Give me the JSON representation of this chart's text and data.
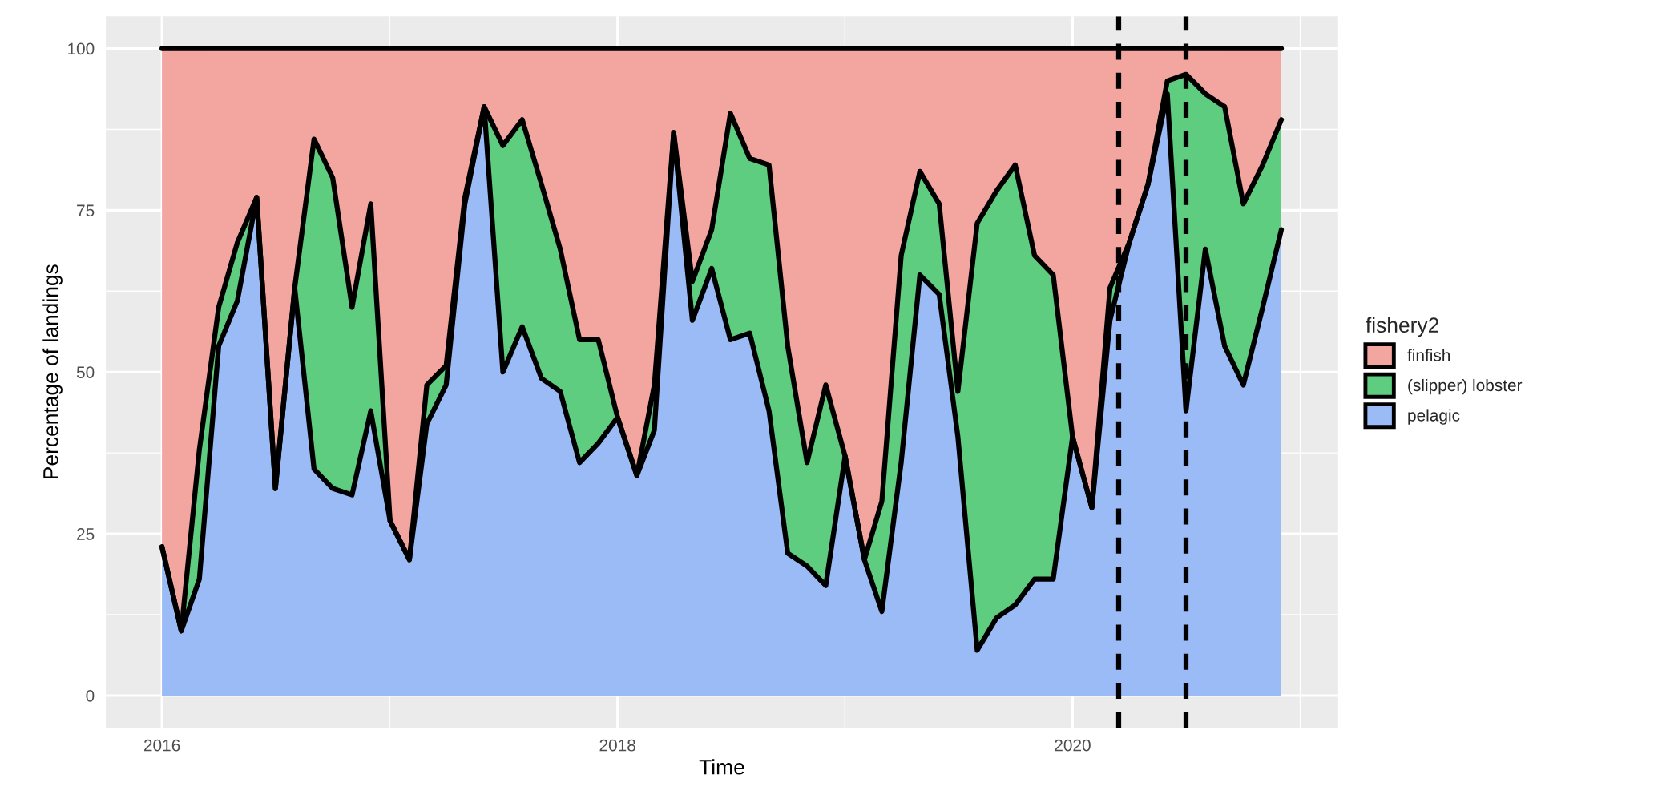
{
  "chart_data": {
    "type": "area",
    "stacked": true,
    "xlabel": "Time",
    "ylabel": "Percentage of landings",
    "legend_title": "fishery2",
    "legend": "right",
    "grid": true,
    "x": [
      "2016-01",
      "2016-02",
      "2016-03",
      "2016-04",
      "2016-05",
      "2016-06",
      "2016-07",
      "2016-08",
      "2016-09",
      "2016-10",
      "2016-11",
      "2016-12",
      "2017-01",
      "2017-02",
      "2017-03",
      "2017-04",
      "2017-05",
      "2017-06",
      "2017-07",
      "2017-08",
      "2017-09",
      "2017-10",
      "2017-11",
      "2017-12",
      "2018-01",
      "2018-02",
      "2018-03",
      "2018-04",
      "2018-05",
      "2018-06",
      "2018-07",
      "2018-08",
      "2018-09",
      "2018-10",
      "2018-11",
      "2018-12",
      "2019-01",
      "2019-02",
      "2019-03",
      "2019-04",
      "2019-05",
      "2019-06",
      "2019-07",
      "2019-08",
      "2019-09",
      "2019-10",
      "2019-11",
      "2019-12",
      "2020-01",
      "2020-02",
      "2020-03",
      "2020-04",
      "2020-05",
      "2020-06",
      "2020-07",
      "2020-08",
      "2020-09",
      "2020-10",
      "2020-11",
      "2020-12"
    ],
    "series": [
      {
        "name": "pelagic",
        "color": "#9abbf5",
        "values": [
          23,
          10,
          18,
          54,
          61,
          77,
          32,
          63,
          35,
          32,
          31,
          44,
          27,
          21,
          42,
          48,
          76,
          91,
          50,
          57,
          49,
          47,
          36,
          39,
          43,
          34,
          41,
          87,
          58,
          66,
          55,
          56,
          44,
          22,
          20,
          17,
          37,
          21,
          13,
          36,
          65,
          62,
          40,
          7,
          12,
          14,
          18,
          18,
          40,
          29,
          58,
          70,
          79,
          93,
          44,
          69,
          54,
          48,
          60,
          72
        ]
      },
      {
        "name": "(slipper) lobster",
        "color": "#5fcd7f",
        "values": [
          0,
          0,
          20,
          6,
          9,
          0,
          0,
          0,
          51,
          48,
          29,
          32,
          0,
          0,
          6,
          3,
          1,
          0,
          35,
          32,
          30,
          22,
          19,
          16,
          0,
          0,
          7,
          0,
          6,
          6,
          35,
          27,
          38,
          32,
          16,
          31,
          0,
          0,
          17,
          32,
          16,
          14,
          7,
          66,
          66,
          68,
          50,
          47,
          0,
          0,
          5,
          0,
          0,
          2,
          52,
          24,
          37,
          28,
          22,
          17
        ]
      },
      {
        "name": "finfish",
        "color": "#f3a59f",
        "values": [
          77,
          90,
          62,
          40,
          30,
          23,
          68,
          37,
          14,
          20,
          40,
          24,
          73,
          79,
          52,
          49,
          23,
          9,
          15,
          11,
          21,
          31,
          45,
          45,
          57,
          66,
          52,
          13,
          36,
          28,
          10,
          17,
          18,
          46,
          64,
          52,
          63,
          79,
          70,
          32,
          19,
          24,
          53,
          27,
          22,
          18,
          32,
          35,
          60,
          71,
          37,
          30,
          21,
          5,
          4,
          7,
          9,
          24,
          18,
          11
        ]
      }
    ],
    "xlim": [
      "2015-10-03",
      "2021-03-02"
    ],
    "xticks": [
      {
        "value": "2016-01-01",
        "label": "2016"
      },
      {
        "value": "2018-01-01",
        "label": "2018"
      },
      {
        "value": "2020-01-01",
        "label": "2020"
      }
    ],
    "ylim": [
      -5,
      105
    ],
    "yticks": [
      0,
      25,
      50,
      75,
      100
    ],
    "ref_lines": [
      {
        "axis": "x",
        "value": "2020-03-15",
        "color": "#000000",
        "line_style": "dashed"
      },
      {
        "axis": "x",
        "value": "2020-07-01",
        "color": "#000000",
        "line_style": "dashed"
      }
    ]
  }
}
